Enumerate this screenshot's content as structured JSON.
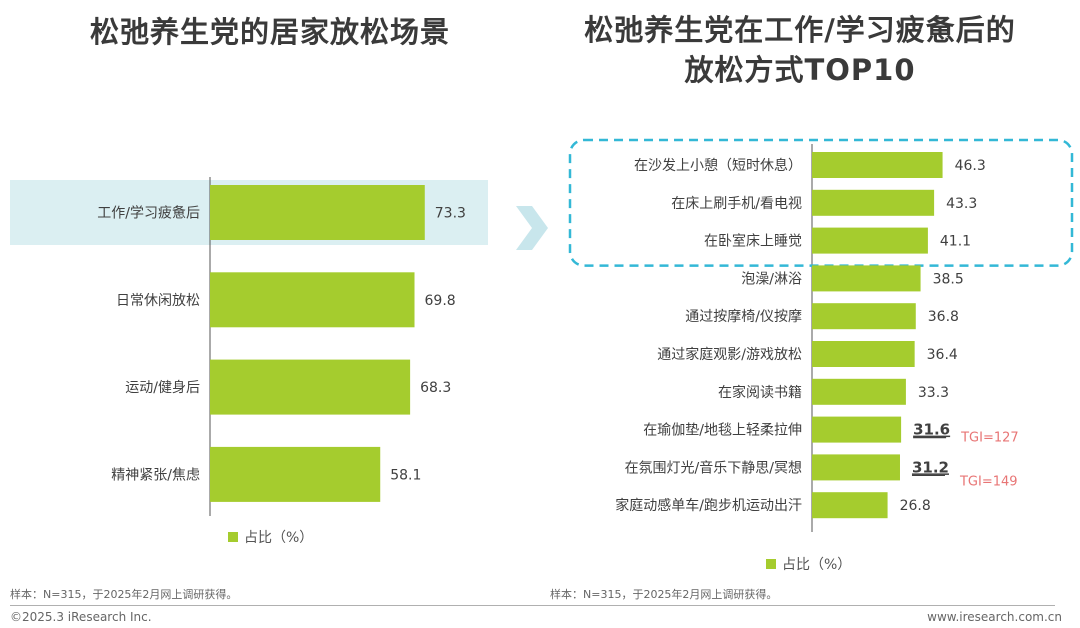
{
  "colors": {
    "bar": "#a5cc2e",
    "highlight_bg": "#cfe9ee",
    "dash": "#33b8d6",
    "tgi": "#e87575",
    "arrow": "#c8e6ec"
  },
  "left_chart": {
    "title": "松弛养生党的居家放松场景",
    "legend": "占比（%）",
    "note": "样本：N=315，于2025年2月网上调研获得。"
  },
  "right_chart": {
    "title_line1": "松弛养生党在工作/学习疲惫后的",
    "title_line2": "放松方式TOP10",
    "legend": "占比（%）",
    "note": "样本：N=315，于2025年2月网上调研获得。"
  },
  "footer": {
    "left": "©2025.3 iResearch Inc.",
    "right": "www.iresearch.com.cn"
  },
  "chart_data": [
    {
      "type": "bar",
      "orientation": "horizontal",
      "categories": [
        "工作/学习疲惫后",
        "日常休闲放松",
        "运动/健身后",
        "精神紧张/焦虑"
      ],
      "series": [
        {
          "name": "占比（%）",
          "values": [
            73.3,
            69.8,
            68.3,
            58.1
          ]
        }
      ],
      "highlighted": [
        "工作/学习疲惫后"
      ],
      "legend_position": "bottom",
      "grid": false
    },
    {
      "type": "bar",
      "orientation": "horizontal",
      "categories": [
        "在沙发上小憩（短时休息）",
        "在床上刷手机/看电视",
        "在卧室床上睡觉",
        "泡澡/淋浴",
        "通过按摩椅/仪按摩",
        "通过家庭观影/游戏放松",
        "在家阅读书籍",
        "在瑜伽垫/地毯上轻柔拉伸",
        "在氛围灯光/音乐下静思/冥想",
        "家庭动感单车/跑步机运动出汗"
      ],
      "series": [
        {
          "name": "占比（%）",
          "values": [
            46.3,
            43.3,
            41.1,
            38.5,
            36.8,
            36.4,
            33.3,
            31.6,
            31.2,
            26.8
          ]
        }
      ],
      "annotations": [
        {
          "category": "在瑜伽垫/地毯上轻柔拉伸",
          "text": "TGI=127"
        },
        {
          "category": "在氛围灯光/音乐下静思/冥想",
          "text": "TGI=149"
        }
      ],
      "emphasized_values": [
        31.6,
        31.2
      ],
      "highlighted": [
        "在沙发上小憩（短时休息）",
        "在床上刷手机/看电视",
        "在卧室床上睡觉"
      ],
      "legend_position": "bottom",
      "grid": false
    }
  ]
}
